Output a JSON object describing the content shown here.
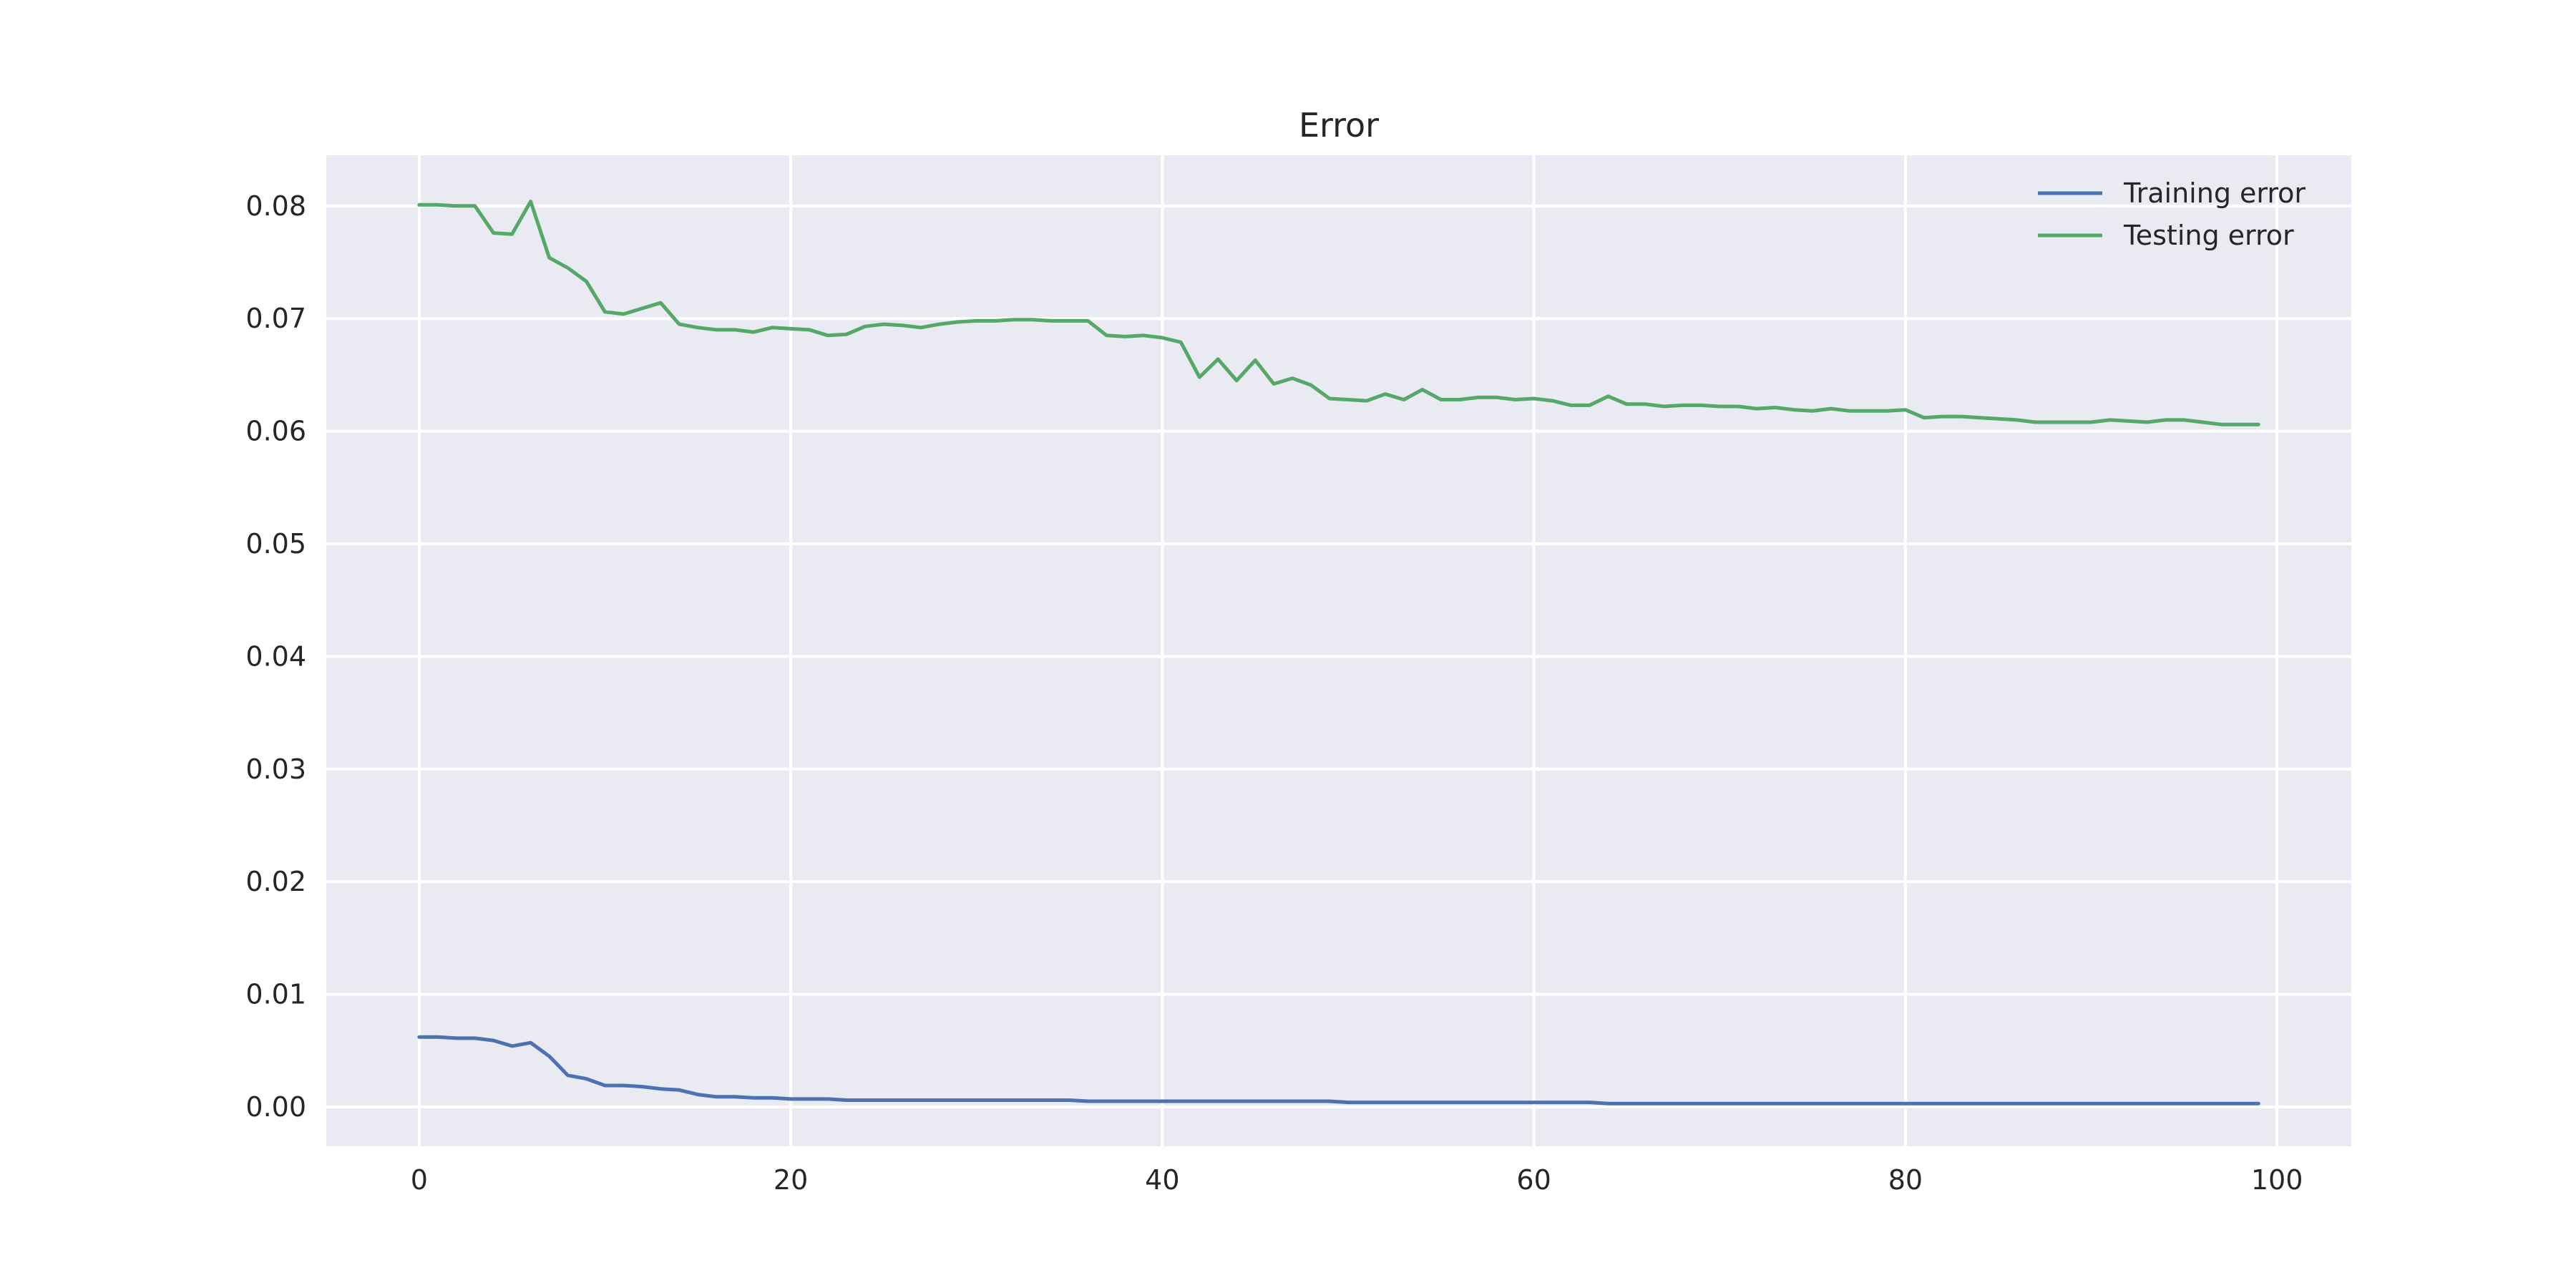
{
  "chart_data": {
    "type": "line",
    "title": "Error",
    "xlabel": "",
    "ylabel": "",
    "xlim": [
      -5,
      104
    ],
    "ylim": [
      -0.0035,
      0.0845
    ],
    "xticks": [
      0,
      20,
      40,
      60,
      80,
      100
    ],
    "xtick_labels": [
      "0",
      "20",
      "40",
      "60",
      "80",
      "100"
    ],
    "yticks": [
      0.0,
      0.01,
      0.02,
      0.03,
      0.04,
      0.05,
      0.06,
      0.07,
      0.08
    ],
    "ytick_labels": [
      "0.00",
      "0.01",
      "0.02",
      "0.03",
      "0.04",
      "0.05",
      "0.06",
      "0.07",
      "0.08"
    ],
    "grid": true,
    "legend_position": "top-right",
    "background_color": "#eaeaf2",
    "series": [
      {
        "name": "Training error",
        "color": "#4c72b0",
        "x": [
          0,
          1,
          2,
          3,
          4,
          5,
          6,
          7,
          8,
          9,
          10,
          11,
          12,
          13,
          14,
          15,
          16,
          17,
          18,
          19,
          20,
          21,
          22,
          23,
          24,
          25,
          26,
          27,
          28,
          29,
          30,
          31,
          32,
          33,
          34,
          35,
          36,
          37,
          38,
          39,
          40,
          41,
          42,
          43,
          44,
          45,
          46,
          47,
          48,
          49,
          50,
          51,
          52,
          53,
          54,
          55,
          56,
          57,
          58,
          59,
          60,
          61,
          62,
          63,
          64,
          65,
          66,
          67,
          68,
          69,
          70,
          71,
          72,
          73,
          74,
          75,
          76,
          77,
          78,
          79,
          80,
          81,
          82,
          83,
          84,
          85,
          86,
          87,
          88,
          89,
          90,
          91,
          92,
          93,
          94,
          95,
          96,
          97,
          98,
          99
        ],
        "values": [
          0.0062,
          0.0062,
          0.0061,
          0.0061,
          0.0059,
          0.0054,
          0.0057,
          0.0045,
          0.0028,
          0.0025,
          0.0019,
          0.0019,
          0.0018,
          0.0016,
          0.0015,
          0.0011,
          0.0009,
          0.0009,
          0.0008,
          0.0008,
          0.0007,
          0.0007,
          0.0007,
          0.0006,
          0.0006,
          0.0006,
          0.0006,
          0.0006,
          0.0006,
          0.0006,
          0.0006,
          0.0006,
          0.0006,
          0.0006,
          0.0006,
          0.0006,
          0.0005,
          0.0005,
          0.0005,
          0.0005,
          0.0005,
          0.0005,
          0.0005,
          0.0005,
          0.0005,
          0.0005,
          0.0005,
          0.0005,
          0.0005,
          0.0005,
          0.0004,
          0.0004,
          0.0004,
          0.0004,
          0.0004,
          0.0004,
          0.0004,
          0.0004,
          0.0004,
          0.0004,
          0.0004,
          0.0004,
          0.0004,
          0.0004,
          0.0003,
          0.0003,
          0.0003,
          0.0003,
          0.0003,
          0.0003,
          0.0003,
          0.0003,
          0.0003,
          0.0003,
          0.0003,
          0.0003,
          0.0003,
          0.0003,
          0.0003,
          0.0003,
          0.0003,
          0.0003,
          0.0003,
          0.0003,
          0.0003,
          0.0003,
          0.0003,
          0.0003,
          0.0003,
          0.0003,
          0.0003,
          0.0003,
          0.0003,
          0.0003,
          0.0003,
          0.0003,
          0.0003,
          0.0003,
          0.0003,
          0.0003
        ]
      },
      {
        "name": "Testing error",
        "color": "#55a868",
        "x": [
          0,
          1,
          2,
          3,
          4,
          5,
          6,
          7,
          8,
          9,
          10,
          11,
          12,
          13,
          14,
          15,
          16,
          17,
          18,
          19,
          20,
          21,
          22,
          23,
          24,
          25,
          26,
          27,
          28,
          29,
          30,
          31,
          32,
          33,
          34,
          35,
          36,
          37,
          38,
          39,
          40,
          41,
          42,
          43,
          44,
          45,
          46,
          47,
          48,
          49,
          50,
          51,
          52,
          53,
          54,
          55,
          56,
          57,
          58,
          59,
          60,
          61,
          62,
          63,
          64,
          65,
          66,
          67,
          68,
          69,
          70,
          71,
          72,
          73,
          74,
          75,
          76,
          77,
          78,
          79,
          80,
          81,
          82,
          83,
          84,
          85,
          86,
          87,
          88,
          89,
          90,
          91,
          92,
          93,
          94,
          95,
          96,
          97,
          98,
          99
        ],
        "values": [
          0.0801,
          0.0801,
          0.08,
          0.08,
          0.0776,
          0.0775,
          0.0804,
          0.0754,
          0.0745,
          0.0733,
          0.0706,
          0.0704,
          0.0709,
          0.0714,
          0.0695,
          0.0692,
          0.069,
          0.069,
          0.0688,
          0.0692,
          0.0691,
          0.069,
          0.0685,
          0.0686,
          0.0693,
          0.0695,
          0.0694,
          0.0692,
          0.0695,
          0.0697,
          0.0698,
          0.0698,
          0.0699,
          0.0699,
          0.0698,
          0.0698,
          0.0698,
          0.0685,
          0.0684,
          0.0685,
          0.0683,
          0.0679,
          0.0648,
          0.0664,
          0.0645,
          0.0663,
          0.0642,
          0.0647,
          0.0641,
          0.0629,
          0.0628,
          0.0627,
          0.0633,
          0.0628,
          0.0637,
          0.0628,
          0.0628,
          0.063,
          0.063,
          0.0628,
          0.0629,
          0.0627,
          0.0623,
          0.0623,
          0.0631,
          0.0624,
          0.0624,
          0.0622,
          0.0623,
          0.0623,
          0.0622,
          0.0622,
          0.062,
          0.0621,
          0.0619,
          0.0618,
          0.062,
          0.0618,
          0.0618,
          0.0618,
          0.0619,
          0.0612,
          0.0613,
          0.0613,
          0.0612,
          0.0611,
          0.061,
          0.0608,
          0.0608,
          0.0608,
          0.0608,
          0.061,
          0.0609,
          0.0608,
          0.061,
          0.061,
          0.0608,
          0.0606,
          0.0606,
          0.0606
        ]
      }
    ]
  }
}
